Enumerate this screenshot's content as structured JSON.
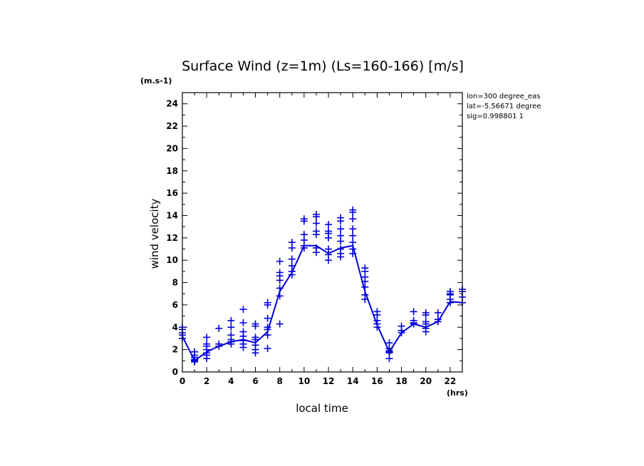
{
  "chart_data": {
    "type": "scatter",
    "title": "Surface Wind (z=1m) (Ls=160-166) [m/s]",
    "xlabel": "local time",
    "ylabel": "wind velocity",
    "xunit": "(hrs)",
    "yunit": "(m.s-1)",
    "xlim": [
      0,
      23
    ],
    "ylim": [
      0,
      25
    ],
    "xticks": [
      0,
      2,
      4,
      6,
      8,
      10,
      12,
      14,
      16,
      18,
      20,
      22
    ],
    "yticks": [
      0,
      2,
      4,
      6,
      8,
      10,
      12,
      14,
      16,
      18,
      20,
      22,
      24
    ],
    "info": [
      "lon=300 degree_eas",
      "lat=-5.56671 degree",
      "sig=0.998801 1"
    ],
    "color": "#0000dd",
    "mean_line": {
      "x": [
        0,
        1,
        2,
        3,
        4,
        5,
        6,
        7,
        8,
        9,
        10,
        11,
        12,
        13,
        14,
        15,
        16,
        17,
        18,
        19,
        20,
        21,
        22,
        23
      ],
      "y": [
        3.2,
        1.0,
        1.8,
        2.3,
        2.7,
        2.9,
        2.6,
        3.6,
        7.2,
        8.9,
        11.3,
        11.3,
        10.6,
        11.1,
        11.3,
        7.2,
        4.2,
        1.8,
        3.5,
        4.3,
        4.0,
        4.5,
        6.3,
        6.2
      ]
    },
    "scatter": [
      {
        "x": 0,
        "values": [
          4.0,
          3.8,
          3.5,
          3.3,
          3.0
        ]
      },
      {
        "x": 1,
        "values": [
          1.8,
          1.5,
          1.3,
          1.1,
          1.0,
          0.9
        ]
      },
      {
        "x": 2,
        "values": [
          3.1,
          2.5,
          2.3,
          2.0,
          1.7,
          1.5,
          1.2
        ]
      },
      {
        "x": 3,
        "values": [
          3.9,
          2.5,
          2.3
        ]
      },
      {
        "x": 4,
        "values": [
          4.6,
          4.0,
          3.3,
          2.9,
          2.7,
          2.5
        ]
      },
      {
        "x": 5,
        "values": [
          5.6,
          4.4,
          3.6,
          3.2,
          2.8,
          2.5,
          2.2
        ]
      },
      {
        "x": 6,
        "values": [
          4.3,
          4.1,
          3.1,
          2.9,
          2.4,
          2.0,
          1.7
        ]
      },
      {
        "x": 7,
        "values": [
          6.2,
          6.0,
          4.8,
          4.0,
          3.8,
          3.3,
          2.1
        ]
      },
      {
        "x": 8,
        "values": [
          9.9,
          8.9,
          8.6,
          8.2,
          7.5,
          6.8,
          4.3
        ]
      },
      {
        "x": 9,
        "values": [
          11.6,
          11.1,
          10.1,
          9.5,
          9.0,
          8.7
        ]
      },
      {
        "x": 10,
        "values": [
          13.7,
          13.5,
          12.3,
          11.8,
          11.3,
          11.1
        ]
      },
      {
        "x": 11,
        "values": [
          14.1,
          13.9,
          13.3,
          12.6,
          12.3,
          11.1,
          10.7
        ]
      },
      {
        "x": 12,
        "values": [
          13.2,
          12.6,
          12.4,
          12.0,
          11.0,
          10.5,
          10.0
        ]
      },
      {
        "x": 13,
        "values": [
          13.8,
          13.5,
          12.8,
          12.2,
          11.7,
          11.0,
          10.6,
          10.3
        ]
      },
      {
        "x": 14,
        "values": [
          14.5,
          14.3,
          13.7,
          12.8,
          12.2,
          11.6,
          11.0,
          10.6
        ]
      },
      {
        "x": 15,
        "values": [
          9.3,
          9.0,
          8.5,
          8.1,
          7.6,
          6.9,
          6.5
        ]
      },
      {
        "x": 16,
        "values": [
          5.4,
          5.1,
          4.6,
          4.3,
          4.0
        ]
      },
      {
        "x": 17,
        "values": [
          2.6,
          2.1,
          1.9,
          1.8,
          1.7,
          1.2
        ]
      },
      {
        "x": 18,
        "values": [
          4.1,
          3.7,
          3.5
        ]
      },
      {
        "x": 19,
        "values": [
          5.4,
          4.6,
          4.4,
          4.3
        ]
      },
      {
        "x": 20,
        "values": [
          5.3,
          5.1,
          4.5,
          4.3,
          3.9,
          3.6
        ]
      },
      {
        "x": 21,
        "values": [
          5.3,
          4.7,
          4.5
        ]
      },
      {
        "x": 22,
        "values": [
          7.2,
          7.0,
          6.9,
          6.5,
          6.2
        ]
      },
      {
        "x": 23,
        "values": [
          7.4,
          7.2,
          6.7,
          6.2
        ]
      }
    ]
  }
}
